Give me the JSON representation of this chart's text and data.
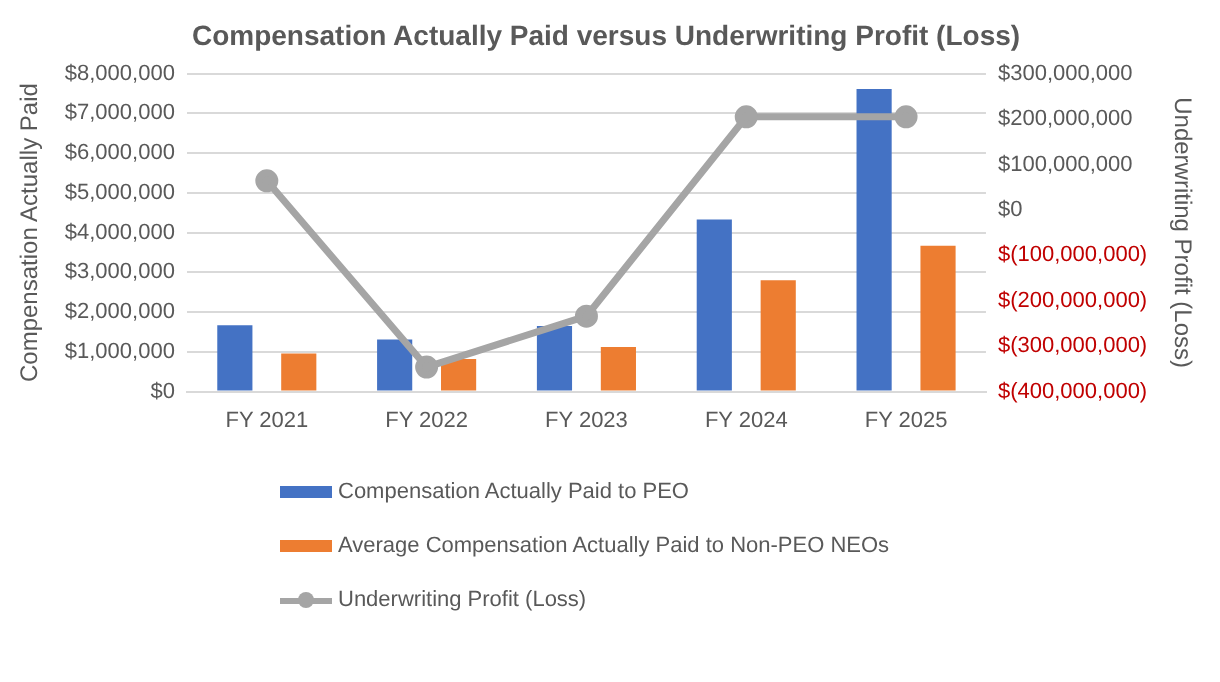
{
  "chart_data": {
    "type": "bar",
    "title": "Compensation Actually Paid versus Underwriting Profit (Loss)",
    "ylabel": "Compensation Actually Paid",
    "y2label": "Underwriting Profit (Loss)",
    "categories": [
      "FY 2021",
      "FY 2022",
      "FY 2023",
      "FY 2024",
      "FY 2025"
    ],
    "series": [
      {
        "name": "Compensation Actually Paid to PEO",
        "color": "#4472c4",
        "values": [
          1670000,
          1310000,
          1650000,
          4330000,
          7610000
        ]
      },
      {
        "name": "Average Compensation Actually Paid to Non-PEO NEOs",
        "color": "#ed7d31",
        "values": [
          960000,
          820000,
          1120000,
          2800000,
          3670000
        ]
      },
      {
        "name": "Underwriting Profit (Loss)",
        "type": "line",
        "axis": "y2",
        "marker": "circle",
        "color": "#a5a5a5",
        "values": [
          64000000,
          -346000000,
          -234000000,
          205000000,
          205000000
        ]
      }
    ],
    "ylim": [
      0,
      8000000
    ],
    "yticks": [
      {
        "value": 0,
        "label": "$0"
      },
      {
        "value": 1000000,
        "label": "$1,000,000"
      },
      {
        "value": 2000000,
        "label": "$2,000,000"
      },
      {
        "value": 3000000,
        "label": "$3,000,000"
      },
      {
        "value": 4000000,
        "label": "$4,000,000"
      },
      {
        "value": 5000000,
        "label": "$5,000,000"
      },
      {
        "value": 6000000,
        "label": "$6,000,000"
      },
      {
        "value": 7000000,
        "label": "$7,000,000"
      },
      {
        "value": 8000000,
        "label": "$8,000,000"
      }
    ],
    "y2lim": [
      -400000000,
      300000000
    ],
    "y2ticks": [
      {
        "value": -400000000,
        "label": "$(400,000,000)"
      },
      {
        "value": -300000000,
        "label": "$(300,000,000)"
      },
      {
        "value": -200000000,
        "label": "$(200,000,000)"
      },
      {
        "value": -100000000,
        "label": "$(100,000,000)"
      },
      {
        "value": 0,
        "label": "$0"
      },
      {
        "value": 100000000,
        "label": "$100,000,000"
      },
      {
        "value": 200000000,
        "label": "$200,000,000"
      },
      {
        "value": 300000000,
        "label": "$300,000,000"
      }
    ],
    "grid": "y",
    "legend": "bottom"
  }
}
